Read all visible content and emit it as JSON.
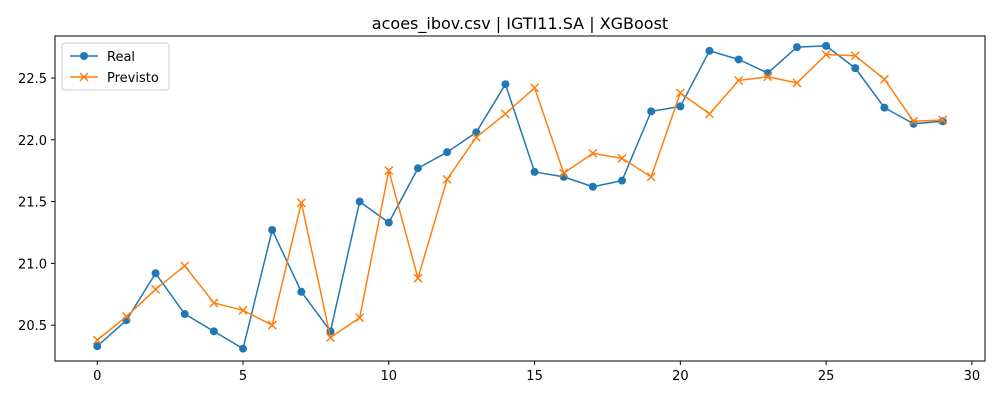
{
  "chart_data": {
    "type": "line",
    "title": "acoes_ibov.csv | IGTI11.SA | XGBoost",
    "xlabel": "",
    "ylabel": "",
    "xlim": [
      -1.45,
      30.45
    ],
    "ylim": [
      20.21,
      22.84
    ],
    "x_ticks": [
      0,
      5,
      10,
      15,
      20,
      25,
      30
    ],
    "y_ticks": [
      20.5,
      21.0,
      21.5,
      22.0,
      22.5
    ],
    "grid": false,
    "legend_position": "top-left",
    "x": [
      0,
      1,
      2,
      3,
      4,
      5,
      6,
      7,
      8,
      9,
      10,
      11,
      12,
      13,
      14,
      15,
      16,
      17,
      18,
      19,
      20,
      21,
      22,
      23,
      24,
      25,
      26,
      27,
      28,
      29
    ],
    "series": [
      {
        "name": "Real",
        "color": "#1f77b4",
        "marker": "circle",
        "values": [
          20.33,
          20.54,
          20.92,
          20.59,
          20.45,
          20.31,
          21.27,
          20.77,
          20.45,
          21.5,
          21.33,
          21.77,
          21.9,
          22.06,
          22.45,
          21.74,
          21.7,
          21.62,
          21.67,
          22.23,
          22.27,
          22.72,
          22.65,
          22.54,
          22.75,
          22.76,
          22.58,
          22.26,
          22.13,
          22.15
        ]
      },
      {
        "name": "Previsto",
        "color": "#ff7f0e",
        "marker": "x",
        "values": [
          20.38,
          20.57,
          20.79,
          20.98,
          20.68,
          20.62,
          20.5,
          21.49,
          20.4,
          20.56,
          21.75,
          20.88,
          21.68,
          22.02,
          22.21,
          22.42,
          21.73,
          21.89,
          21.85,
          21.7,
          22.38,
          22.21,
          22.48,
          22.51,
          22.46,
          22.69,
          22.68,
          22.49,
          22.15,
          22.16
        ]
      }
    ]
  }
}
